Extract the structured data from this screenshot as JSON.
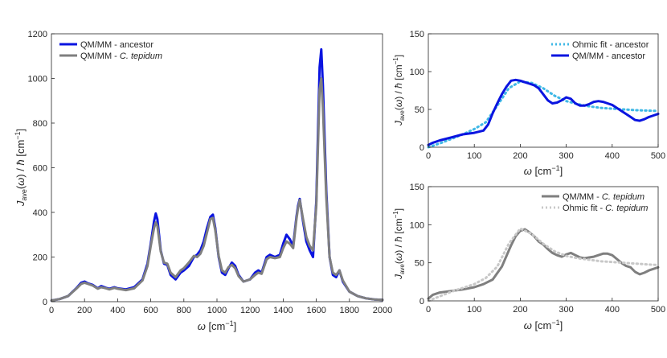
{
  "chart_data": [
    {
      "type": "line",
      "xlabel": "ω [cm⁻¹]",
      "ylabel": "J_ave(ω) / ħ [cm⁻¹]",
      "xlim": [
        0,
        2000
      ],
      "ylim": [
        0,
        1200
      ],
      "xticks": [
        0,
        200,
        400,
        600,
        800,
        1000,
        1200,
        1400,
        1600,
        1800,
        2000
      ],
      "yticks": [
        0,
        200,
        400,
        600,
        800,
        1000,
        1200
      ],
      "grid": false,
      "legend_position": "top-left",
      "series": [
        {
          "name": "QM/MM - ancestor",
          "color": "#0a14e0",
          "style": "solid",
          "x": [
            0,
            50,
            100,
            150,
            180,
            200,
            220,
            250,
            280,
            300,
            330,
            350,
            380,
            400,
            450,
            500,
            550,
            580,
            600,
            620,
            630,
            640,
            660,
            680,
            700,
            720,
            750,
            780,
            800,
            830,
            860,
            880,
            900,
            920,
            940,
            960,
            975,
            990,
            1010,
            1030,
            1050,
            1070,
            1090,
            1110,
            1130,
            1160,
            1200,
            1230,
            1250,
            1270,
            1300,
            1320,
            1350,
            1380,
            1400,
            1420,
            1440,
            1460,
            1480,
            1490,
            1500,
            1520,
            1540,
            1560,
            1580,
            1600,
            1620,
            1630,
            1640,
            1660,
            1680,
            1700,
            1720,
            1740,
            1760,
            1800,
            1850,
            1900,
            1950,
            2000
          ],
          "y": [
            5,
            12,
            25,
            60,
            85,
            90,
            82,
            75,
            60,
            70,
            62,
            58,
            65,
            60,
            55,
            65,
            100,
            170,
            260,
            360,
            395,
            370,
            230,
            170,
            165,
            120,
            100,
            130,
            140,
            160,
            200,
            210,
            230,
            270,
            330,
            380,
            390,
            330,
            200,
            130,
            120,
            150,
            175,
            160,
            120,
            90,
            100,
            130,
            140,
            130,
            200,
            210,
            200,
            210,
            260,
            300,
            280,
            250,
            380,
            430,
            460,
            360,
            270,
            230,
            200,
            450,
            1050,
            1130,
            970,
            500,
            200,
            120,
            110,
            140,
            90,
            45,
            25,
            15,
            10,
            8
          ]
        },
        {
          "name": "QM/MM - C. tepidum",
          "color": "#7f7f7f",
          "style": "solid",
          "x": [
            0,
            50,
            100,
            150,
            180,
            200,
            220,
            250,
            280,
            300,
            330,
            350,
            380,
            400,
            450,
            500,
            550,
            580,
            600,
            620,
            630,
            640,
            660,
            680,
            700,
            720,
            750,
            780,
            800,
            830,
            860,
            880,
            900,
            920,
            940,
            960,
            975,
            990,
            1010,
            1030,
            1050,
            1070,
            1090,
            1110,
            1130,
            1160,
            1200,
            1230,
            1250,
            1270,
            1300,
            1320,
            1350,
            1380,
            1400,
            1420,
            1440,
            1460,
            1480,
            1490,
            1500,
            1520,
            1540,
            1560,
            1580,
            1600,
            1620,
            1630,
            1640,
            1660,
            1680,
            1700,
            1720,
            1740,
            1760,
            1800,
            1850,
            1900,
            1950,
            2000
          ],
          "y": [
            5,
            12,
            25,
            58,
            80,
            85,
            80,
            72,
            58,
            65,
            60,
            55,
            62,
            58,
            52,
            60,
            95,
            160,
            250,
            330,
            355,
            340,
            225,
            175,
            170,
            130,
            110,
            140,
            150,
            175,
            205,
            200,
            215,
            250,
            310,
            370,
            375,
            320,
            205,
            140,
            130,
            155,
            165,
            150,
            115,
            90,
            100,
            120,
            130,
            125,
            190,
            200,
            195,
            200,
            240,
            270,
            260,
            240,
            370,
            420,
            455,
            370,
            290,
            250,
            230,
            430,
            950,
            1000,
            870,
            470,
            200,
            130,
            120,
            140,
            95,
            45,
            25,
            15,
            10,
            8
          ]
        }
      ]
    },
    {
      "type": "line",
      "xlabel": "ω [cm⁻¹]",
      "ylabel": "J_ave(ω) / ħ [cm⁻¹]",
      "xlim": [
        0,
        500
      ],
      "ylim": [
        0,
        150
      ],
      "xticks": [
        0,
        100,
        200,
        300,
        400,
        500
      ],
      "yticks": [
        0,
        50,
        100,
        150
      ],
      "grid": false,
      "legend_position": "top-right",
      "series": [
        {
          "name": "Ohmic fit - ancestor",
          "color": "#3fb8e6",
          "style": "dotted",
          "x": [
            0,
            25,
            50,
            75,
            100,
            125,
            150,
            175,
            200,
            225,
            250,
            275,
            300,
            325,
            350,
            375,
            400,
            425,
            450,
            475,
            500
          ],
          "y": [
            0,
            5,
            11,
            17,
            24,
            33,
            55,
            78,
            87,
            85,
            78,
            68,
            61,
            57,
            54,
            52,
            51,
            50,
            49,
            48.5,
            48
          ]
        },
        {
          "name": "QM/MM - ancestor",
          "color": "#0a14e0",
          "style": "solid",
          "x": [
            0,
            10,
            25,
            50,
            75,
            100,
            120,
            130,
            140,
            150,
            160,
            170,
            180,
            190,
            200,
            210,
            220,
            230,
            240,
            250,
            260,
            270,
            280,
            290,
            300,
            310,
            320,
            330,
            340,
            350,
            360,
            370,
            380,
            390,
            400,
            410,
            420,
            430,
            440,
            450,
            460,
            470,
            480,
            490,
            500
          ],
          "y": [
            3,
            6,
            9,
            13,
            17,
            19,
            22,
            30,
            45,
            58,
            70,
            80,
            88,
            89,
            88,
            86,
            84,
            82,
            78,
            70,
            62,
            58,
            59,
            62,
            66,
            64,
            58,
            55,
            55,
            57,
            60,
            61,
            60,
            58,
            56,
            52,
            48,
            44,
            40,
            36,
            35,
            37,
            40,
            42,
            44
          ]
        }
      ]
    },
    {
      "type": "line",
      "xlabel": "ω [cm⁻¹]",
      "ylabel": "J_ave(ω) / ħ [cm⁻¹]",
      "xlim": [
        0,
        500
      ],
      "ylim": [
        0,
        150
      ],
      "xticks": [
        0,
        100,
        200,
        300,
        400,
        500
      ],
      "yticks": [
        0,
        50,
        100,
        150
      ],
      "grid": false,
      "legend_position": "top-right",
      "series": [
        {
          "name": "QM/MM - C. tepidum",
          "color": "#7f7f7f",
          "style": "solid",
          "x": [
            0,
            10,
            25,
            50,
            75,
            100,
            120,
            140,
            160,
            180,
            190,
            200,
            210,
            220,
            230,
            240,
            250,
            260,
            270,
            280,
            290,
            300,
            310,
            320,
            330,
            340,
            350,
            360,
            370,
            380,
            390,
            400,
            410,
            420,
            430,
            440,
            450,
            460,
            470,
            480,
            490,
            500
          ],
          "y": [
            3,
            8,
            11,
            13,
            15,
            18,
            22,
            28,
            45,
            73,
            85,
            92,
            94,
            90,
            85,
            78,
            74,
            68,
            63,
            60,
            58,
            61,
            63,
            60,
            57,
            56,
            57,
            58,
            60,
            62,
            62,
            60,
            55,
            50,
            46,
            44,
            38,
            35,
            37,
            40,
            42,
            44
          ]
        },
        {
          "name": "Ohmic fit - C. tepidum",
          "color": "#c8c8c8",
          "style": "dotted",
          "x": [
            0,
            25,
            50,
            75,
            100,
            125,
            150,
            175,
            200,
            225,
            250,
            275,
            300,
            325,
            350,
            375,
            400,
            425,
            450,
            475,
            500
          ],
          "y": [
            0,
            6,
            12,
            17,
            22,
            30,
            45,
            75,
            95,
            88,
            75,
            65,
            59,
            56,
            54,
            52,
            51,
            50,
            49,
            48,
            47
          ]
        }
      ]
    }
  ]
}
